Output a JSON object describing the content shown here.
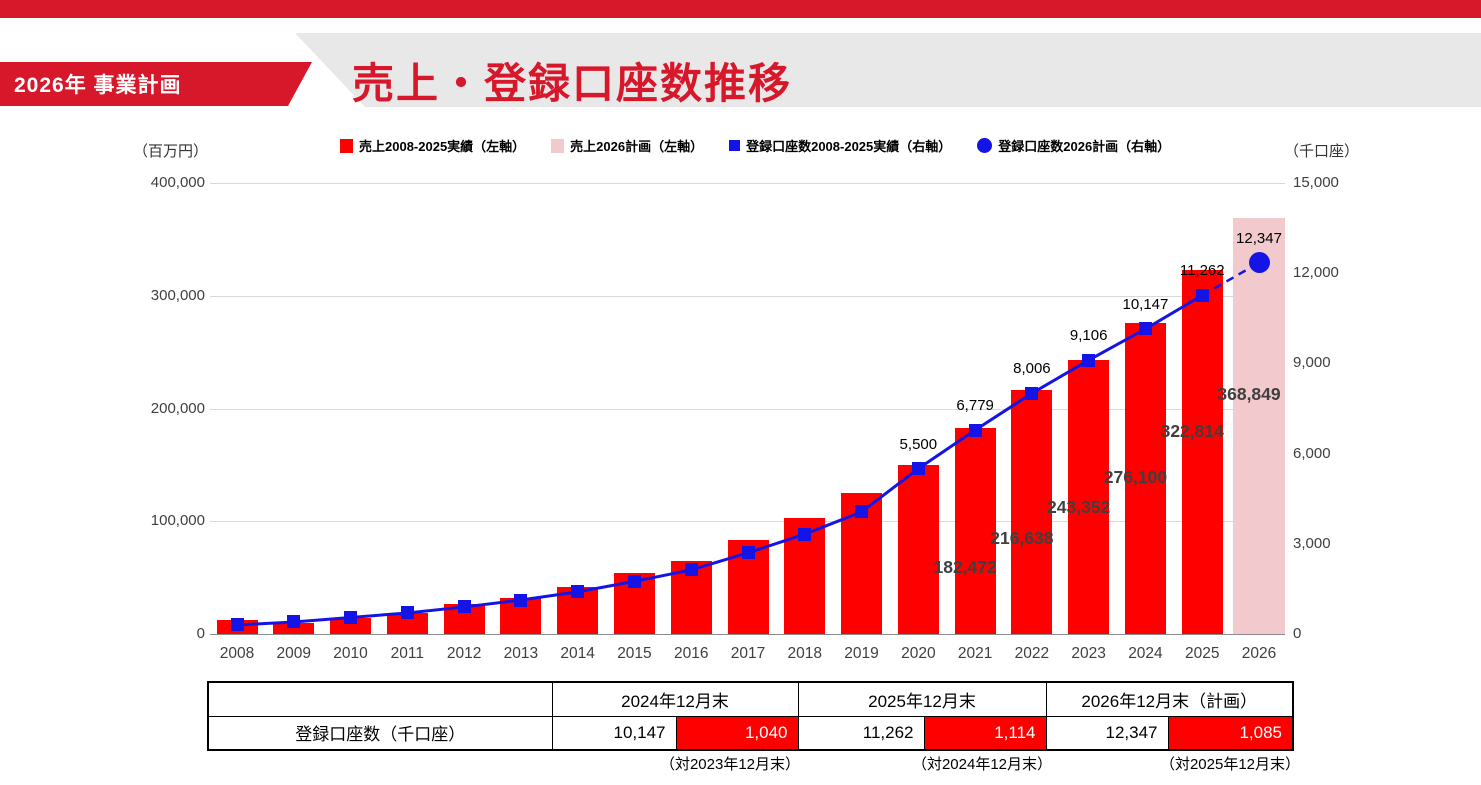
{
  "header": {
    "ribbon_label": "2026年 事業計画",
    "title": "売上・登録口座数推移"
  },
  "colors": {
    "accent_red": "#d7182b",
    "bar_red": "#ff0000",
    "plan_pink": "#f2c9cd",
    "line_blue": "#1414e6",
    "grid_gray": "#d9d9d9",
    "banner_gray": "#e8e8e9"
  },
  "legend": {
    "items": [
      {
        "swatch": "red-square",
        "label": "売上2008-2025実績（左軸）"
      },
      {
        "swatch": "pink-square",
        "label": "売上2026計画（左軸）"
      },
      {
        "swatch": "blue-square",
        "label": "登録口座数2008-2025実績（右軸）"
      },
      {
        "swatch": "blue-circle",
        "label": "登録口座数2026計画（右軸）"
      }
    ]
  },
  "chart_data": {
    "type": "bar",
    "subtype": "combo-bar-line-dual-axis",
    "categories": [
      "2008",
      "2009",
      "2010",
      "2011",
      "2012",
      "2013",
      "2014",
      "2015",
      "2016",
      "2017",
      "2018",
      "2019",
      "2020",
      "2021",
      "2022",
      "2023",
      "2024",
      "2025",
      "2026"
    ],
    "left_axis": {
      "title": "（百万円）",
      "min": 0,
      "max": 400000,
      "tick_values": [
        400000,
        300000,
        200000,
        100000,
        0
      ],
      "tick_labels": [
        "400,000",
        "300,000",
        "200,000",
        "100,000",
        "0"
      ]
    },
    "right_axis": {
      "title": "（千口座）",
      "min": 0,
      "max": 15000,
      "tick_values": [
        15000,
        12000,
        9000,
        6000,
        3000,
        0
      ],
      "tick_labels": [
        "15,000",
        "12,000",
        "9,000",
        "6,000",
        "3,000",
        "0"
      ]
    },
    "series": [
      {
        "name": "売上2008-2025実績（左軸）",
        "type": "bar",
        "axis": "left",
        "color": "#ff0000",
        "values": [
          12500,
          10000,
          14000,
          18500,
          27000,
          32000,
          42000,
          54000,
          65000,
          83000,
          103000,
          125000,
          150000,
          182472,
          216638,
          243352,
          276100,
          322814,
          null
        ]
      },
      {
        "name": "売上2026計画（左軸）",
        "type": "bar",
        "axis": "left",
        "color": "#f2c9cd",
        "values": [
          null,
          null,
          null,
          null,
          null,
          null,
          null,
          null,
          null,
          null,
          null,
          null,
          null,
          null,
          null,
          null,
          null,
          null,
          368849
        ]
      },
      {
        "name": "登録口座数2008-2025実績（右軸）",
        "type": "line-square-markers",
        "axis": "right",
        "color": "#1414e6",
        "values": [
          300,
          400,
          550,
          700,
          900,
          1130,
          1400,
          1750,
          2130,
          2700,
          3320,
          4060,
          5500,
          6779,
          8006,
          9106,
          10147,
          11262,
          null
        ]
      },
      {
        "name": "登録口座数2026計画（右軸）",
        "type": "point-circle-dashed-link",
        "axis": "right",
        "color": "#1414e6",
        "values": [
          null,
          null,
          null,
          null,
          null,
          null,
          null,
          null,
          null,
          null,
          null,
          null,
          null,
          null,
          null,
          null,
          null,
          null,
          12347
        ]
      }
    ],
    "marker_labels": [
      {
        "year": "2020",
        "text": "5,500"
      },
      {
        "year": "2021",
        "text": "6,779"
      },
      {
        "year": "2022",
        "text": "8,006"
      },
      {
        "year": "2023",
        "text": "9,106"
      },
      {
        "year": "2024",
        "text": "10,147"
      },
      {
        "year": "2025",
        "text": "11,262"
      },
      {
        "year": "2026",
        "text": "12,347"
      }
    ],
    "bar_labels": [
      {
        "year": "2021",
        "text": "182,472"
      },
      {
        "year": "2022",
        "text": "216,638"
      },
      {
        "year": "2023",
        "text": "243,352"
      },
      {
        "year": "2024",
        "text": "276,100"
      },
      {
        "year": "2025",
        "text": "322,814"
      },
      {
        "year": "2026",
        "text": "368,849"
      }
    ],
    "grid": true,
    "legend_position": "top"
  },
  "table": {
    "row_label": "登録口座数（千口座）",
    "col_headers": [
      "2024年12月末",
      "2025年12月末",
      "2026年12月末（計画）"
    ],
    "values": [
      {
        "total": "10,147",
        "delta": "1,040"
      },
      {
        "total": "11,262",
        "delta": "1,114"
      },
      {
        "total": "12,347",
        "delta": "1,085"
      }
    ],
    "footnotes": [
      "（対2023年12月末）",
      "（対2024年12月末）",
      "（対2025年12月末）"
    ]
  }
}
